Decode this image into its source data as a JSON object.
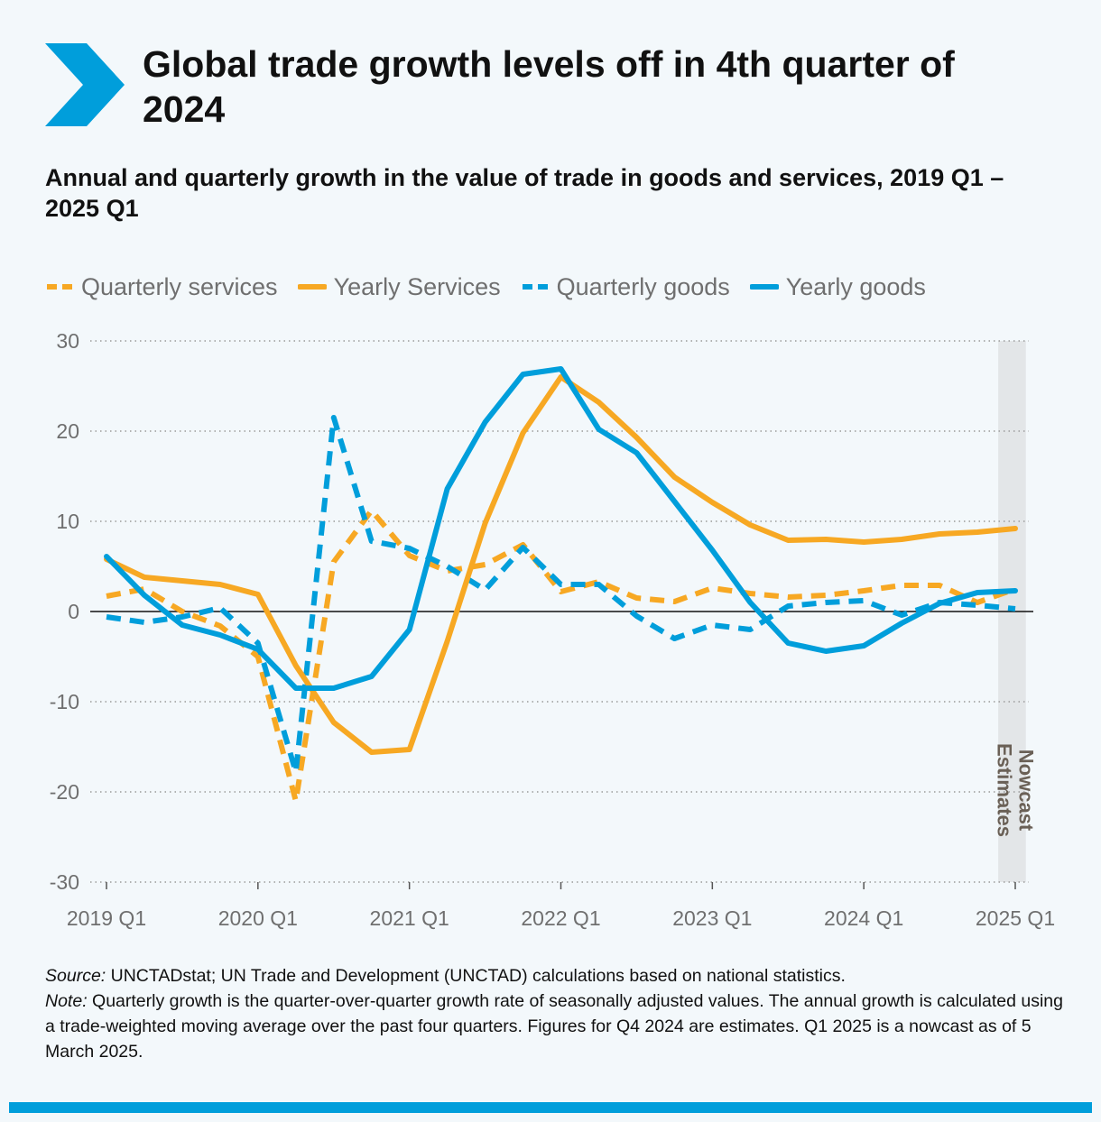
{
  "header": {
    "title": "Global trade growth levels off in 4th quarter of 2024",
    "subtitle": "Annual and quarterly growth in the value of trade in goods and services, 2019 Q1 – 2025 Q1"
  },
  "colors": {
    "services": "#f7a823",
    "goods": "#009edb",
    "shade": "#e3e6e8",
    "grid": "#9a9a9a",
    "axis_text": "#6f6f6f",
    "background": "#f3f8fb",
    "accent": "#009edb"
  },
  "icons": {
    "title": "chevron-right-icon"
  },
  "chart_data": {
    "type": "line",
    "title": "Global trade growth levels off in 4th quarter of 2024",
    "subtitle": "Annual and quarterly growth in the value of trade in goods and services, 2019 Q1 – 2025 Q1",
    "xlabel": "",
    "ylabel": "",
    "ylim": [
      -30,
      30
    ],
    "yticks": [
      30,
      20,
      10,
      0,
      -10,
      -20,
      -30
    ],
    "grid": true,
    "legend_position": "top-left",
    "x": [
      "2019 Q1",
      "2019 Q2",
      "2019 Q3",
      "2019 Q4",
      "2020 Q1",
      "2020 Q2",
      "2020 Q3",
      "2020 Q4",
      "2021 Q1",
      "2021 Q2",
      "2021 Q3",
      "2021 Q4",
      "2022 Q1",
      "2022 Q2",
      "2022 Q3",
      "2022 Q4",
      "2023 Q1",
      "2023 Q2",
      "2023 Q3",
      "2023 Q4",
      "2024 Q1",
      "2024 Q2",
      "2024 Q3",
      "2024 Q4",
      "2025 Q1"
    ],
    "xtick_labels": [
      "2019 Q1",
      "2020 Q1",
      "2021 Q1",
      "2022 Q1",
      "2023 Q1",
      "2024 Q1",
      "2025 Q1"
    ],
    "shaded_region": {
      "from": "2024 Q4",
      "to": "2025 Q1",
      "label": "Nowcast Estimates"
    },
    "series": [
      {
        "name": "Quarterly services",
        "style": "dashed",
        "color": "#f7a823",
        "values": [
          1.7,
          2.5,
          0.0,
          -1.6,
          -5.0,
          -21.0,
          5.5,
          11.2,
          6.2,
          4.5,
          5.2,
          7.4,
          2.2,
          3.3,
          1.5,
          1.1,
          2.6,
          2.0,
          1.6,
          1.8,
          2.3,
          2.9,
          2.9,
          1.0,
          2.5
        ]
      },
      {
        "name": "Yearly Services",
        "style": "solid",
        "color": "#f7a823",
        "values": [
          5.8,
          3.8,
          3.4,
          3.0,
          1.9,
          -6.0,
          -12.3,
          -15.6,
          -15.3,
          -3.3,
          9.8,
          19.8,
          26.0,
          23.2,
          19.3,
          14.9,
          12.1,
          9.6,
          7.9,
          8.0,
          7.7,
          8.0,
          8.6,
          8.8,
          9.2
        ]
      },
      {
        "name": "Quarterly goods",
        "style": "dashed",
        "color": "#009edb",
        "values": [
          -0.6,
          -1.2,
          -0.6,
          0.4,
          -3.5,
          -17.8,
          21.5,
          7.8,
          7.0,
          5.0,
          2.4,
          7.1,
          3.0,
          3.0,
          -0.5,
          -3.0,
          -1.5,
          -2.0,
          0.6,
          1.0,
          1.2,
          -0.4,
          1.0,
          0.7,
          0.3
        ]
      },
      {
        "name": "Yearly goods",
        "style": "solid",
        "color": "#009edb",
        "values": [
          6.1,
          1.8,
          -1.5,
          -2.6,
          -4.2,
          -8.5,
          -8.5,
          -7.2,
          -2.0,
          13.6,
          21.0,
          26.3,
          26.9,
          20.2,
          17.6,
          12.2,
          6.8,
          1.0,
          -3.5,
          -4.4,
          -3.8,
          -1.3,
          0.9,
          2.1,
          2.3
        ]
      }
    ]
  },
  "footer": {
    "source_label": "Source:",
    "source_text": " UNCTADstat; UN Trade and Development (UNCTAD) calculations based on national statistics.",
    "note_label": "Note:",
    "note_text": " Quarterly growth is the quarter-over-quarter growth rate of seasonally adjusted values. The annual growth is calculated using a trade-weighted moving average over the past four quarters. Figures for Q4 2024 are estimates. Q1 2025 is a nowcast as of 5 March 2025."
  }
}
